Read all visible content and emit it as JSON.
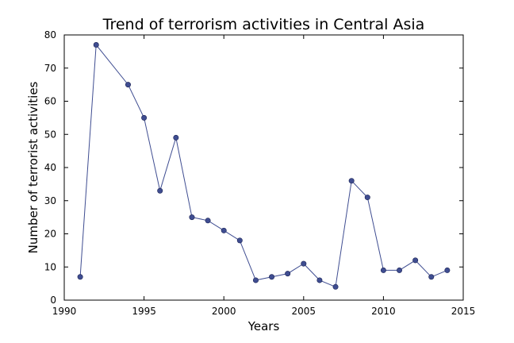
{
  "chart_data": {
    "type": "line",
    "title": "Trend of terrorism activities in Central Asia",
    "xlabel": "Years",
    "ylabel": "Number of terrorist activities",
    "xlim": [
      1990,
      2015
    ],
    "ylim": [
      0,
      80
    ],
    "xticks": [
      1990,
      1995,
      2000,
      2005,
      2010,
      2015
    ],
    "yticks": [
      0,
      10,
      20,
      30,
      40,
      50,
      60,
      70,
      80
    ],
    "grid": false,
    "legend": "none",
    "series": [
      {
        "color": "#3f4d91",
        "marker": "circle",
        "x": [
          1991,
          1992,
          1994,
          1995,
          1996,
          1997,
          1998,
          1999,
          2000,
          2001,
          2002,
          2003,
          2004,
          2005,
          2006,
          2007,
          2008,
          2009,
          2010,
          2011,
          2012,
          2013,
          2014
        ],
        "y": [
          7,
          77,
          65,
          55,
          33,
          49,
          25,
          24,
          21,
          18,
          6,
          7,
          8,
          11,
          6,
          4,
          36,
          31,
          9,
          9,
          12,
          7,
          9
        ]
      }
    ]
  }
}
